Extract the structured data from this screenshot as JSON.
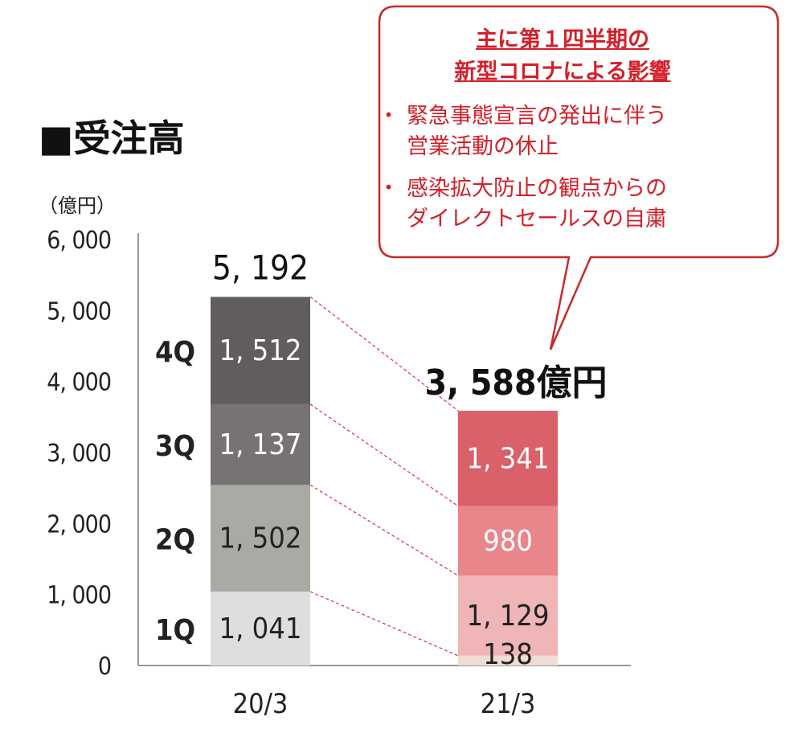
{
  "chart_data": {
    "type": "bar",
    "title": "■受注高",
    "unit_label": "（億円）",
    "categories": [
      "20/3",
      "21/3"
    ],
    "stack_labels": [
      "1Q",
      "2Q",
      "3Q",
      "4Q"
    ],
    "stacks": [
      {
        "category": "20/3",
        "values": [
          1041,
          1502,
          1137,
          1512
        ],
        "value_labels": [
          "1, 041",
          "1, 502",
          "1, 137",
          "1, 512"
        ],
        "colors": [
          "#dedede",
          "#aaaaa5",
          "#777372",
          "#615d5c"
        ],
        "total_label": "5, 192"
      },
      {
        "category": "21/3",
        "values": [
          138,
          1129,
          980,
          1341
        ],
        "value_labels": [
          "138",
          "1, 129",
          "980",
          "1, 341"
        ],
        "colors": [
          "#efdcd3",
          "#efb5b7",
          "#e8868c",
          "#da6069"
        ],
        "total_label": "3, 588億円"
      }
    ],
    "ylim": [
      0,
      6000
    ],
    "yticks": [
      {
        "value": 0,
        "label": "0"
      },
      {
        "value": 1000,
        "label": "1, 000"
      },
      {
        "value": 2000,
        "label": "2, 000"
      },
      {
        "value": 3000,
        "label": "3, 000"
      },
      {
        "value": 4000,
        "label": "4, 000"
      },
      {
        "value": 5000,
        "label": "5, 000"
      },
      {
        "value": 6000,
        "label": "6, 000"
      }
    ],
    "connector_lines": "dashed",
    "grid": false,
    "legend": "none"
  },
  "callout": {
    "heading_line1": "主に第１四半期の",
    "heading_line2": "新型コロナによる影響",
    "bullets": [
      {
        "line1": "緊急事態宣言の発出に伴う",
        "line2": "営業活動の休止"
      },
      {
        "line1": "感染拡大防止の観点からの",
        "line2": "ダイレクトセールスの自粛"
      }
    ],
    "text_color": "#d4202a",
    "border_color": "#c62a2a"
  }
}
